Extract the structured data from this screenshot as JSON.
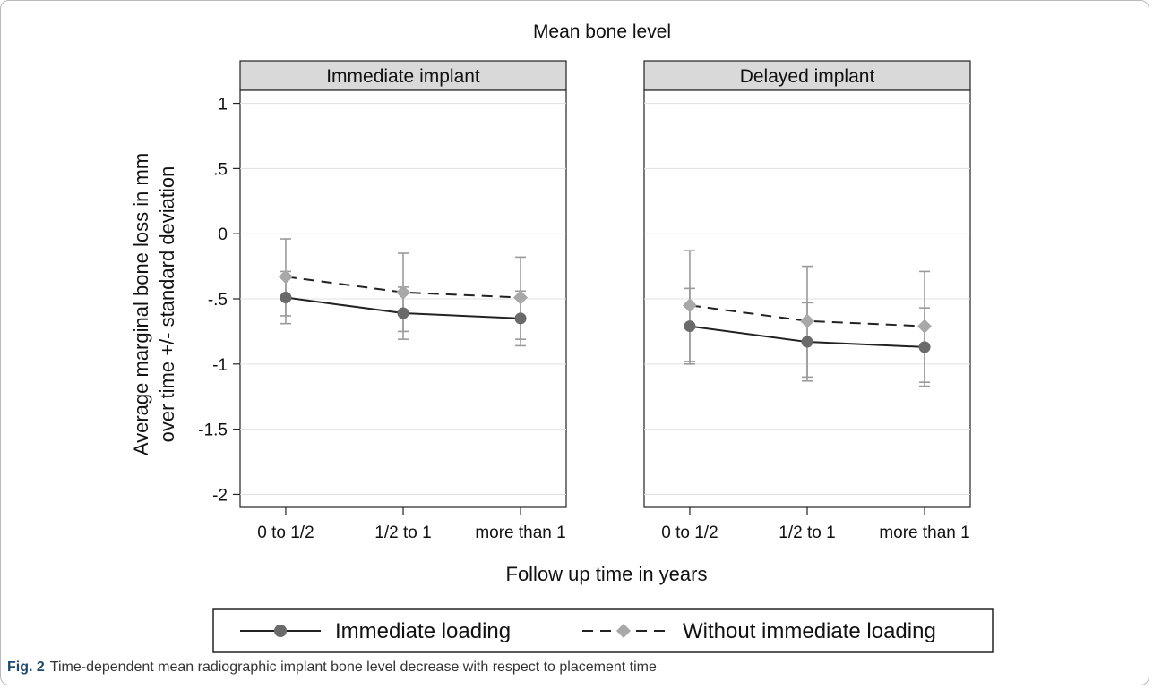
{
  "chart_data": {
    "type": "line",
    "title": "Mean bone level",
    "xlabel": "Follow up time in years",
    "ylabel": [
      "Average marginal bone loss in mm",
      "over time +/- standard deviation"
    ],
    "categories": [
      "0 to 1/2",
      "1/2 to 1",
      "more than 1"
    ],
    "ylim": [
      -2.1,
      1.1
    ],
    "yticks": [
      1,
      0.5,
      0,
      -0.5,
      -1,
      -1.5,
      -2
    ],
    "ytick_labels": [
      "1",
      ".5",
      "0",
      "-.5",
      "-1",
      "-1.5",
      "-2"
    ],
    "grid": true,
    "legend_position": "bottom",
    "colors": {
      "immediate": "#6a6a6a",
      "without": "#a8a8a8",
      "panel_header": "#d9d9d9"
    },
    "panels": [
      {
        "title": "Immediate implant",
        "series": [
          {
            "name": "Immediate loading",
            "values": [
              -0.49,
              -0.61,
              -0.65
            ],
            "lower": [
              -0.69,
              -0.81,
              -0.86
            ],
            "upper": [
              -0.29,
              -0.41,
              -0.44
            ]
          },
          {
            "name": "Without immediate loading",
            "values": [
              -0.33,
              -0.45,
              -0.49
            ],
            "lower": [
              -0.63,
              -0.75,
              -0.81
            ],
            "upper": [
              -0.04,
              -0.15,
              -0.18
            ]
          }
        ]
      },
      {
        "title": "Delayed implant",
        "series": [
          {
            "name": "Immediate loading",
            "values": [
              -0.71,
              -0.83,
              -0.87
            ],
            "lower": [
              -1.0,
              -1.13,
              -1.17
            ],
            "upper": [
              -0.42,
              -0.53,
              -0.57
            ]
          },
          {
            "name": "Without immediate loading",
            "values": [
              -0.55,
              -0.67,
              -0.71
            ],
            "lower": [
              -0.98,
              -1.1,
              -1.14
            ],
            "upper": [
              -0.13,
              -0.25,
              -0.29
            ]
          }
        ]
      }
    ]
  },
  "legend": {
    "items": [
      "Immediate loading",
      "Without immediate loading"
    ]
  },
  "caption": {
    "label": "Fig. 2",
    "text": "Time-dependent mean radiographic implant bone level decrease with respect to placement time"
  }
}
